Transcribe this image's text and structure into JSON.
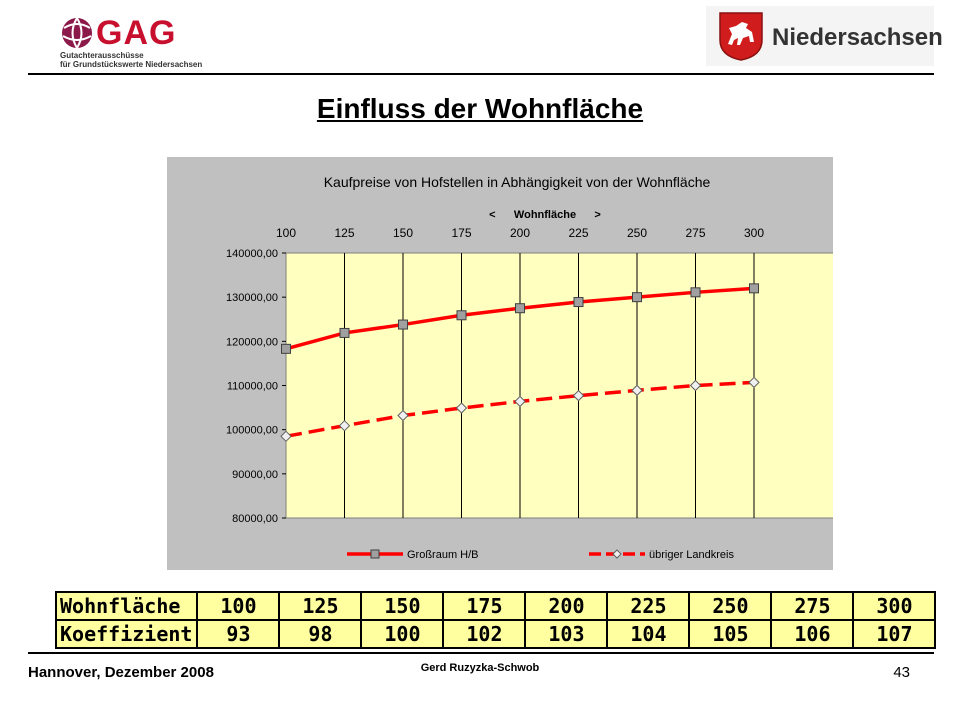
{
  "header": {
    "gag_logo_text": "GAG",
    "gag_subtitle_1": "Gutachterausschüsse",
    "gag_subtitle_2": "für Grundstückswerte Niedersachsen",
    "ns_logo_text": "Niedersachsen"
  },
  "title": "Einfluss der Wohnfläche",
  "chart_data": {
    "type": "line",
    "title": "Kaufpreise von Hofstellen in Abhängigkeit von der Wohnfläche",
    "top_axis_label": "<      Wohnfläche      >",
    "x": [
      100,
      125,
      150,
      175,
      200,
      225,
      250,
      275,
      300
    ],
    "ylim": [
      80000,
      140000
    ],
    "yticks": [
      "140000,00",
      "130000,00",
      "120000,00",
      "110000,00",
      "100000,00",
      "90000,00",
      "80000,00"
    ],
    "grid": "vertical",
    "legend_position": "bottom",
    "plot_background": "#ffffc0",
    "series": [
      {
        "name": "Großraum H/B",
        "color": "#ff0000",
        "marker": "square",
        "line_style": "solid",
        "values": [
          118300,
          121900,
          123800,
          125900,
          127500,
          128900,
          130000,
          131100,
          132000
        ]
      },
      {
        "name": "übriger Landkreis",
        "color": "#ff0000",
        "marker": "diamond",
        "line_style": "dashed",
        "values": [
          98500,
          100900,
          103200,
          104900,
          106400,
          107700,
          108900,
          110000,
          110700
        ]
      }
    ]
  },
  "table": {
    "rows": [
      {
        "label": "Wohnfläche",
        "values": [
          "100",
          "125",
          "150",
          "175",
          "200",
          "225",
          "250",
          "275",
          "300"
        ]
      },
      {
        "label": "Koeffizient",
        "values": [
          "93",
          "98",
          "100",
          "102",
          "103",
          "104",
          "105",
          "106",
          "107"
        ]
      }
    ]
  },
  "footer": {
    "left": "Hannover, Dezember 2008",
    "center": "Gerd Ruzyzka-Schwob",
    "page_number": "43"
  }
}
